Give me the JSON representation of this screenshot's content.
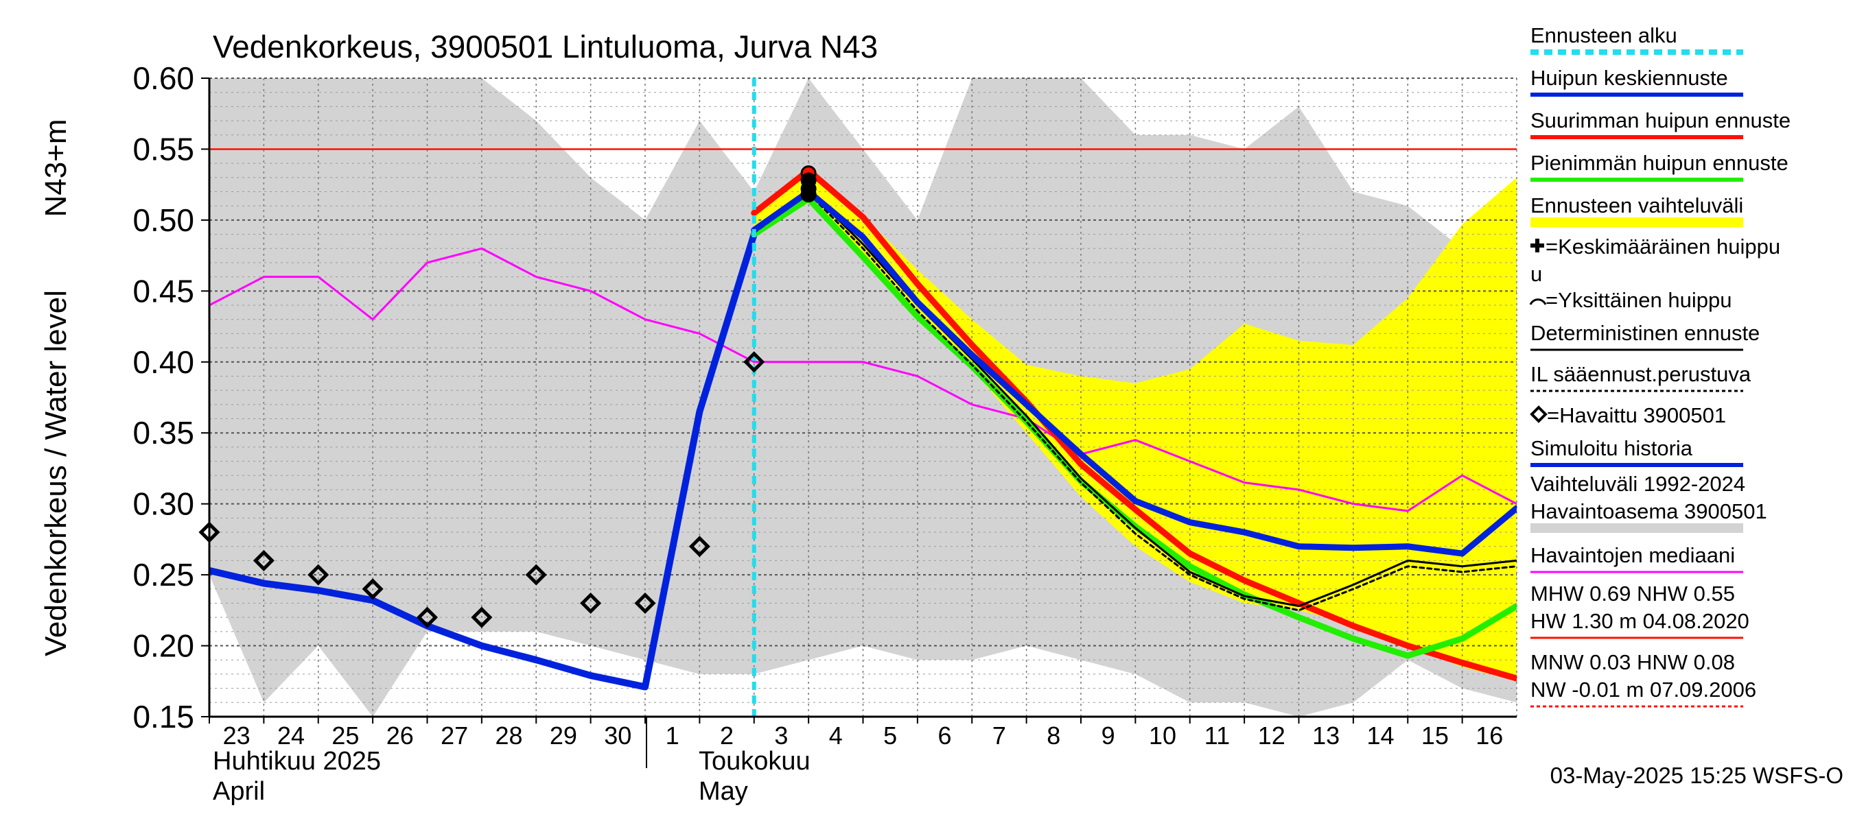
{
  "chart_data": {
    "type": "line",
    "title": "Vedenkorkeus, 3900501 Lintuluoma, Jurva N43",
    "ylabel": "Vedenkorkeus / Water level",
    "ylabel_unit": "N43+m",
    "ylim": [
      0.15,
      0.6
    ],
    "yticks": [
      "0.60",
      "0.55",
      "0.50",
      "0.45",
      "0.40",
      "0.35",
      "0.30",
      "0.25",
      "0.20",
      "0.15"
    ],
    "x_day_labels": [
      "23",
      "24",
      "25",
      "26",
      "27",
      "28",
      "29",
      "30",
      "1",
      "2",
      "3",
      "4",
      "5",
      "6",
      "7",
      "8",
      "9",
      "10",
      "11",
      "12",
      "13",
      "14",
      "15",
      "16"
    ],
    "month_labels": {
      "april_fi": "Huhtikuu  2025",
      "april_en": "April",
      "may_fi": "Toukokuu",
      "may_en": "May"
    },
    "footer": "03-May-2025 15:25 WSFS-O",
    "forecast_start_x": 10.0,
    "reference_line": 0.55,
    "grid": true,
    "legend_position": "right",
    "legend": [
      {
        "label": "Ennusteen alku",
        "style": "dashed",
        "color": "#22ddee"
      },
      {
        "label": "Huipun keskiennuste",
        "style": "line",
        "color": "#0022dd"
      },
      {
        "label": "Suurimman huipun ennuste",
        "style": "line",
        "color": "#ff1100"
      },
      {
        "label": "Pienimmän huipun ennuste",
        "style": "line",
        "color": "#22ee00"
      },
      {
        "label": "Ennusteen vaihteluväli",
        "style": "band",
        "color": "#ffff00"
      },
      {
        "label": "=Keskimääräinen huippu",
        "label2": "u",
        "style": "plus",
        "color": "#000000"
      },
      {
        "label": "=Yksittäinen huippu",
        "style": "arc",
        "color": "#000000"
      },
      {
        "label": "Deterministinen ennuste",
        "style": "line",
        "color": "#000000"
      },
      {
        "label": "IL sääennust.perustuva",
        "style": "dotted",
        "color": "#000000"
      },
      {
        "label": "=Havaittu 3900501",
        "style": "diamond",
        "color": "#000000"
      },
      {
        "label": "Simuloitu historia",
        "style": "line",
        "color": "#0022dd"
      },
      {
        "label": "Vaihteluväli 1992-2024",
        "label2": " Havaintoasema 3900501",
        "style": "band",
        "color": "#d3d3d3"
      },
      {
        "label": "Havaintojen mediaani",
        "style": "line",
        "color": "#ff00ff"
      },
      {
        "label": "MHW   0.69 NHW   0.55",
        "label2": "HW   1.30 m 04.08.2020",
        "style": "line",
        "color": "#ff1100"
      },
      {
        "label": "MNW   0.03 HNW   0.08",
        "label2": "NW  -0.01 m 07.09.2006",
        "style": "dotted",
        "color": "#ff1100"
      }
    ],
    "gray_band": {
      "x": [
        0,
        1,
        2,
        3,
        4,
        5,
        6,
        7,
        8,
        9,
        10,
        11,
        12,
        13,
        14,
        15,
        16,
        17,
        18,
        19,
        20,
        21,
        22,
        23,
        24
      ],
      "upper": [
        0.6,
        0.6,
        0.6,
        0.6,
        0.6,
        0.6,
        0.57,
        0.53,
        0.5,
        0.57,
        0.52,
        0.6,
        0.55,
        0.5,
        0.6,
        0.6,
        0.6,
        0.56,
        0.56,
        0.55,
        0.58,
        0.52,
        0.51,
        0.48,
        0.43
      ],
      "lower": [
        0.25,
        0.16,
        0.2,
        0.15,
        0.21,
        0.21,
        0.21,
        0.2,
        0.19,
        0.18,
        0.18,
        0.19,
        0.2,
        0.19,
        0.19,
        0.2,
        0.19,
        0.18,
        0.16,
        0.16,
        0.15,
        0.16,
        0.19,
        0.17,
        0.16
      ]
    },
    "yellow_band": {
      "x": [
        10,
        11,
        12,
        13,
        14,
        15,
        16,
        17,
        18,
        19,
        20,
        21,
        22,
        23,
        24
      ],
      "upper": [
        0.506,
        0.537,
        0.503,
        0.465,
        0.43,
        0.398,
        0.39,
        0.385,
        0.395,
        0.427,
        0.415,
        0.412,
        0.445,
        0.497,
        0.53
      ],
      "lower": [
        0.49,
        0.512,
        0.472,
        0.43,
        0.395,
        0.35,
        0.305,
        0.27,
        0.245,
        0.23,
        0.225,
        0.215,
        0.2,
        0.185,
        0.175
      ]
    },
    "series": [
      {
        "name": "Havaintojen mediaani",
        "color": "#ff00ff",
        "x": [
          0,
          1,
          2,
          3,
          4,
          5,
          6,
          7,
          8,
          9,
          10,
          11,
          12,
          13,
          14,
          15,
          16,
          17,
          18,
          19,
          20,
          21,
          22,
          23,
          24
        ],
        "y": [
          0.44,
          0.46,
          0.46,
          0.43,
          0.47,
          0.48,
          0.46,
          0.45,
          0.43,
          0.42,
          0.4,
          0.4,
          0.4,
          0.39,
          0.37,
          0.36,
          0.335,
          0.345,
          0.33,
          0.315,
          0.31,
          0.3,
          0.295,
          0.32,
          0.3
        ]
      },
      {
        "name": "Simuloitu historia",
        "color": "#0022dd",
        "x": [
          0,
          1,
          2,
          3,
          4,
          5,
          6,
          7,
          8,
          9,
          10
        ],
        "y": [
          0.253,
          0.244,
          0.239,
          0.232,
          0.214,
          0.2,
          0.19,
          0.179,
          0.171,
          0.365,
          0.49
        ]
      },
      {
        "name": "Suurimman huipun ennuste",
        "color": "#ff1100",
        "x": [
          10,
          11,
          12,
          13,
          14,
          15,
          16,
          17,
          18,
          19,
          20,
          21,
          22,
          23,
          24
        ],
        "y": [
          0.505,
          0.535,
          0.502,
          0.455,
          0.412,
          0.372,
          0.328,
          0.296,
          0.265,
          0.246,
          0.23,
          0.214,
          0.2,
          0.188,
          0.177
        ]
      },
      {
        "name": "Pienimmän huipun ennuste",
        "color": "#22ee00",
        "x": [
          10,
          11,
          12,
          13,
          14,
          15,
          16,
          17,
          18,
          19,
          20,
          21,
          22,
          23,
          24
        ],
        "y": [
          0.49,
          0.515,
          0.474,
          0.432,
          0.397,
          0.358,
          0.316,
          0.284,
          0.256,
          0.236,
          0.22,
          0.205,
          0.193,
          0.205,
          0.228
        ]
      },
      {
        "name": "Deterministinen ennuste",
        "color": "#000000",
        "x": [
          10,
          11,
          12,
          13,
          14,
          15,
          16,
          17,
          18,
          19,
          20,
          21,
          22,
          23,
          24
        ],
        "y": [
          0.492,
          0.521,
          0.483,
          0.44,
          0.402,
          0.362,
          0.318,
          0.283,
          0.252,
          0.235,
          0.228,
          0.243,
          0.26,
          0.256,
          0.26
        ]
      },
      {
        "name": "IL sääennust.perustuva",
        "color": "#000000",
        "x": [
          10,
          11,
          12,
          13,
          14,
          15,
          16,
          17,
          18,
          19,
          20,
          21,
          22,
          23,
          24
        ],
        "y": [
          0.491,
          0.519,
          0.48,
          0.436,
          0.398,
          0.358,
          0.315,
          0.279,
          0.25,
          0.233,
          0.225,
          0.24,
          0.256,
          0.252,
          0.256
        ]
      },
      {
        "name": "Huipun keskiennuste",
        "color": "#0022dd",
        "x": [
          10,
          11,
          12,
          13,
          14,
          15,
          16,
          17,
          18,
          19,
          20,
          21,
          22,
          23,
          24
        ],
        "y": [
          0.493,
          0.52,
          0.488,
          0.442,
          0.405,
          0.37,
          0.335,
          0.302,
          0.287,
          0.28,
          0.27,
          0.269,
          0.27,
          0.265,
          0.297
        ]
      }
    ],
    "observed": {
      "name": "Havaittu 3900501",
      "x": [
        0,
        1,
        2,
        3,
        4,
        5,
        6,
        7,
        8,
        9,
        10
      ],
      "y": [
        0.28,
        0.26,
        0.25,
        0.24,
        0.22,
        0.22,
        0.25,
        0.23,
        0.23,
        0.27,
        0.4
      ]
    },
    "peaks": {
      "x": [
        11,
        11,
        11,
        11
      ],
      "y": [
        0.533,
        0.528,
        0.522,
        0.518
      ]
    }
  }
}
